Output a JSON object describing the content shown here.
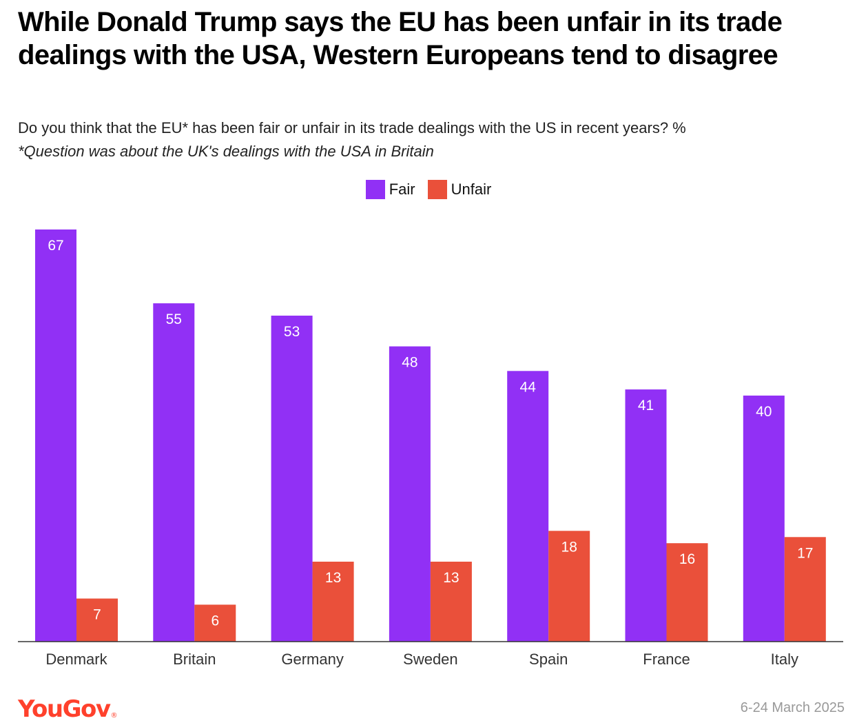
{
  "chart_data": {
    "type": "bar",
    "title": "While Donald Trump says the EU has been unfair in its trade dealings with the USA, Western Europeans tend to disagree",
    "subtitle": "Do you think that the EU* has been fair or unfair in its trade dealings with the US in recent years? %",
    "note": "*Question was about the UK's dealings with the USA in Britain",
    "categories": [
      "Denmark",
      "Britain",
      "Germany",
      "Sweden",
      "Spain",
      "France",
      "Italy"
    ],
    "series": [
      {
        "name": "Fair",
        "color": "#9130f5",
        "values": [
          67,
          55,
          53,
          48,
          44,
          41,
          40
        ]
      },
      {
        "name": "Unfair",
        "color": "#ea503a",
        "values": [
          7,
          6,
          13,
          13,
          18,
          16,
          17
        ]
      }
    ],
    "ylim": [
      0,
      67
    ],
    "grid": false,
    "legend": "top-center",
    "xlabel": "",
    "ylabel": ""
  },
  "footer": {
    "brand": "YouGov",
    "trademark": "®",
    "date": "6-24 March 2025"
  }
}
